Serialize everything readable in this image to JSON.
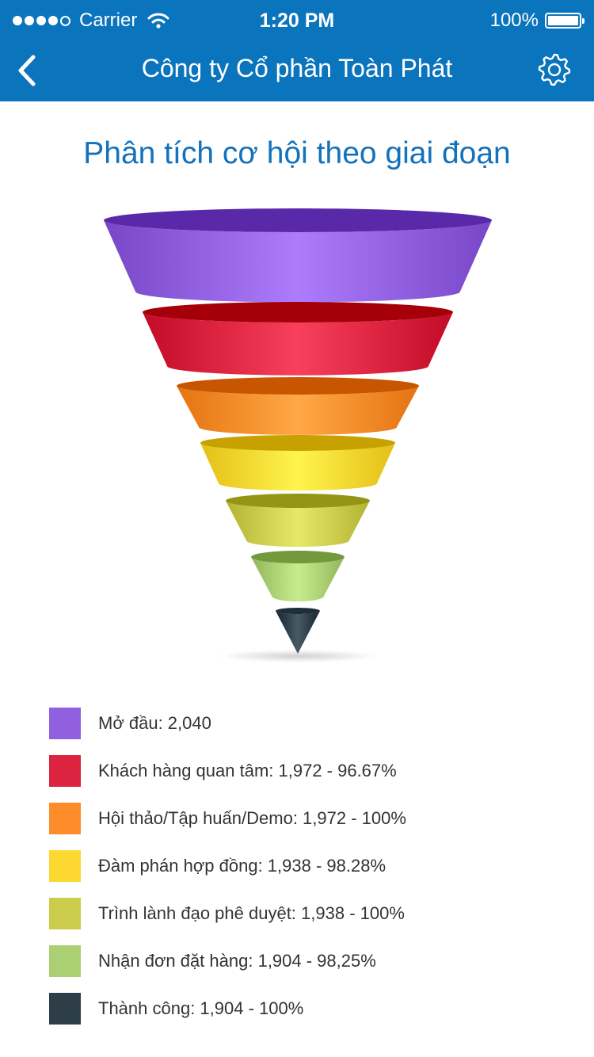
{
  "status_bar": {
    "carrier": "Carrier",
    "time": "1:20 PM",
    "battery": "100%"
  },
  "nav": {
    "back_icon": "chevron-left-icon",
    "title": "Công ty Cổ phần Toàn Phát",
    "settings_icon": "gear-icon"
  },
  "page_title": "Phân tích cơ hội theo giai đoạn",
  "chart_data": {
    "type": "funnel",
    "title": "Phân tích cơ hội theo giai đoạn",
    "stages": [
      {
        "name": "Mở đầu",
        "value": 2040,
        "color": "#9060e0"
      },
      {
        "name": "Khách hàng quan tâm",
        "value": 1972,
        "percent": 96.67,
        "color": "#dc2440"
      },
      {
        "name": "Hội thảo/Tập huấn/Demo",
        "value": 1972,
        "percent": 100,
        "color": "#ff8c2a"
      },
      {
        "name": "Đàm phán hợp đồng",
        "value": 1938,
        "percent": 98.28,
        "color": "#fdd830"
      },
      {
        "name": "Trình lành đạo phê duyệt",
        "value": 1938,
        "percent": 100,
        "color": "#cccc4c"
      },
      {
        "name": "Nhận đơn đặt hàng",
        "value": 1904,
        "percent": 98.25,
        "color": "#abd074"
      },
      {
        "name": "Thành công",
        "value": 1904,
        "percent": 100,
        "color": "#2d3e48"
      }
    ]
  },
  "legend": [
    {
      "label": "Mở đầu: 2,040",
      "color": "#9060e0"
    },
    {
      "label": "Khách hàng quan tâm: 1,972 - 96.67%",
      "color": "#dc2440"
    },
    {
      "label": "Hội thảo/Tập huấn/Demo: 1,972 - 100%",
      "color": "#ff8c2a"
    },
    {
      "label": "Đàm phán hợp đồng: 1,938 - 98.28%",
      "color": "#fdd830"
    },
    {
      "label": "Trình lành đạo phê duyệt: 1,938 - 100%",
      "color": "#cccc4c"
    },
    {
      "label": "Nhận đơn đặt hàng: 1,904 - 98,25%",
      "color": "#abd074"
    },
    {
      "label": "Thành công: 1,904 - 100%",
      "color": "#2d3e48"
    }
  ]
}
